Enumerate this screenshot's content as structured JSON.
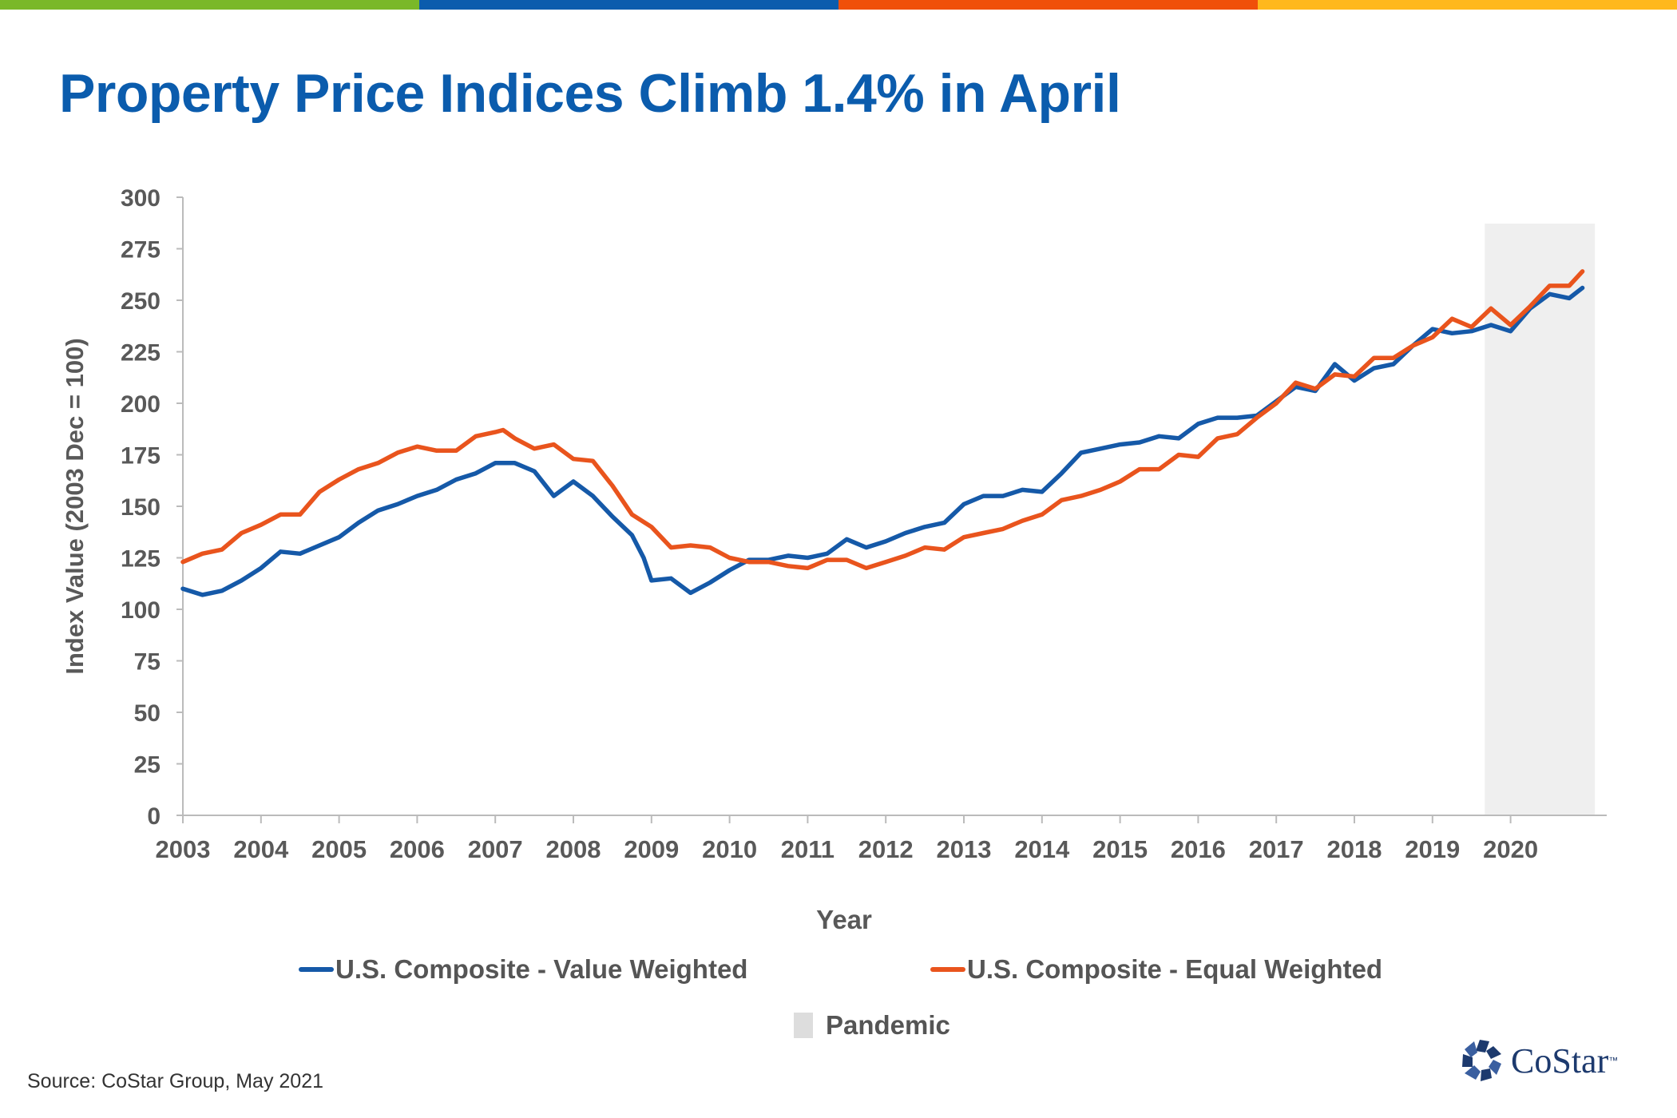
{
  "header": {
    "title": "Property Price Indices Climb 1.4% in April",
    "stripe_colors": [
      "#7ab829",
      "#0b5cad",
      "#f0500a",
      "#ffb81c"
    ]
  },
  "footer": {
    "source": "Source: CoStar Group, May 2021",
    "logo_text": "CoStar",
    "logo_tm": "™",
    "logo_icon": "costar-star-icon"
  },
  "chart_data": {
    "type": "line",
    "title": "",
    "xlabel": "Year",
    "ylabel": "Index Value (2003 Dec = 100)",
    "xlim": [
      2003,
      2021
    ],
    "ylim": [
      0,
      300
    ],
    "yticks": [
      0,
      25,
      50,
      75,
      100,
      125,
      150,
      175,
      200,
      225,
      250,
      275,
      300
    ],
    "xtick_labels": [
      "2003",
      "2004",
      "2005",
      "2006",
      "2007",
      "2008",
      "2009",
      "2010",
      "2011",
      "2012",
      "2013",
      "2014",
      "2015",
      "2016",
      "2017",
      "2018",
      "2019",
      "2020"
    ],
    "grid": false,
    "legend_position": "bottom",
    "shaded_region": {
      "name": "Pandemic",
      "start": 2019.67,
      "end": 2021.08,
      "color": "#efefef"
    },
    "series": [
      {
        "name": "U.S. Composite - Value Weighted",
        "color": "#1559a8",
        "points": [
          [
            2003.0,
            110
          ],
          [
            2003.25,
            107
          ],
          [
            2003.5,
            109
          ],
          [
            2003.75,
            114
          ],
          [
            2004.0,
            120
          ],
          [
            2004.25,
            128
          ],
          [
            2004.5,
            127
          ],
          [
            2004.75,
            131
          ],
          [
            2005.0,
            135
          ],
          [
            2005.25,
            142
          ],
          [
            2005.5,
            148
          ],
          [
            2005.75,
            151
          ],
          [
            2006.0,
            155
          ],
          [
            2006.25,
            158
          ],
          [
            2006.5,
            163
          ],
          [
            2006.75,
            166
          ],
          [
            2007.0,
            171
          ],
          [
            2007.25,
            171
          ],
          [
            2007.5,
            167
          ],
          [
            2007.75,
            155
          ],
          [
            2008.0,
            162
          ],
          [
            2008.25,
            155
          ],
          [
            2008.5,
            145
          ],
          [
            2008.75,
            136
          ],
          [
            2008.9,
            125
          ],
          [
            2009.0,
            114
          ],
          [
            2009.25,
            115
          ],
          [
            2009.5,
            108
          ],
          [
            2009.75,
            113
          ],
          [
            2010.0,
            119
          ],
          [
            2010.25,
            124
          ],
          [
            2010.5,
            124
          ],
          [
            2010.75,
            126
          ],
          [
            2011.0,
            125
          ],
          [
            2011.25,
            127
          ],
          [
            2011.5,
            134
          ],
          [
            2011.75,
            130
          ],
          [
            2012.0,
            133
          ],
          [
            2012.25,
            137
          ],
          [
            2012.5,
            140
          ],
          [
            2012.75,
            142
          ],
          [
            2013.0,
            151
          ],
          [
            2013.25,
            155
          ],
          [
            2013.5,
            155
          ],
          [
            2013.75,
            158
          ],
          [
            2014.0,
            157
          ],
          [
            2014.25,
            166
          ],
          [
            2014.5,
            176
          ],
          [
            2014.75,
            178
          ],
          [
            2015.0,
            180
          ],
          [
            2015.25,
            181
          ],
          [
            2015.5,
            184
          ],
          [
            2015.75,
            183
          ],
          [
            2016.0,
            190
          ],
          [
            2016.25,
            193
          ],
          [
            2016.5,
            193
          ],
          [
            2016.75,
            194
          ],
          [
            2017.0,
            201
          ],
          [
            2017.25,
            208
          ],
          [
            2017.5,
            206
          ],
          [
            2017.75,
            219
          ],
          [
            2018.0,
            211
          ],
          [
            2018.25,
            217
          ],
          [
            2018.5,
            219
          ],
          [
            2018.75,
            228
          ],
          [
            2019.0,
            236
          ],
          [
            2019.25,
            234
          ],
          [
            2019.5,
            235
          ],
          [
            2019.75,
            238
          ],
          [
            2020.0,
            235
          ],
          [
            2020.25,
            246
          ],
          [
            2020.5,
            253
          ],
          [
            2020.75,
            251
          ],
          [
            2020.92,
            256
          ]
        ]
      },
      {
        "name": "U.S. Composite - Equal Weighted",
        "color": "#e9541d",
        "points": [
          [
            2003.0,
            123
          ],
          [
            2003.25,
            127
          ],
          [
            2003.5,
            129
          ],
          [
            2003.75,
            137
          ],
          [
            2004.0,
            141
          ],
          [
            2004.25,
            146
          ],
          [
            2004.5,
            146
          ],
          [
            2004.75,
            157
          ],
          [
            2005.0,
            163
          ],
          [
            2005.25,
            168
          ],
          [
            2005.5,
            171
          ],
          [
            2005.75,
            176
          ],
          [
            2006.0,
            179
          ],
          [
            2006.25,
            177
          ],
          [
            2006.5,
            177
          ],
          [
            2006.75,
            184
          ],
          [
            2007.0,
            186
          ],
          [
            2007.1,
            187
          ],
          [
            2007.25,
            183
          ],
          [
            2007.5,
            178
          ],
          [
            2007.75,
            180
          ],
          [
            2008.0,
            173
          ],
          [
            2008.25,
            172
          ],
          [
            2008.5,
            160
          ],
          [
            2008.75,
            146
          ],
          [
            2009.0,
            140
          ],
          [
            2009.25,
            130
          ],
          [
            2009.5,
            131
          ],
          [
            2009.75,
            130
          ],
          [
            2010.0,
            125
          ],
          [
            2010.25,
            123
          ],
          [
            2010.5,
            123
          ],
          [
            2010.75,
            121
          ],
          [
            2011.0,
            120
          ],
          [
            2011.25,
            124
          ],
          [
            2011.5,
            124
          ],
          [
            2011.75,
            120
          ],
          [
            2012.0,
            123
          ],
          [
            2012.25,
            126
          ],
          [
            2012.5,
            130
          ],
          [
            2012.75,
            129
          ],
          [
            2013.0,
            135
          ],
          [
            2013.25,
            137
          ],
          [
            2013.5,
            139
          ],
          [
            2013.75,
            143
          ],
          [
            2014.0,
            146
          ],
          [
            2014.25,
            153
          ],
          [
            2014.5,
            155
          ],
          [
            2014.75,
            158
          ],
          [
            2015.0,
            162
          ],
          [
            2015.25,
            168
          ],
          [
            2015.5,
            168
          ],
          [
            2015.75,
            175
          ],
          [
            2016.0,
            174
          ],
          [
            2016.25,
            183
          ],
          [
            2016.5,
            185
          ],
          [
            2016.75,
            193
          ],
          [
            2017.0,
            200
          ],
          [
            2017.25,
            210
          ],
          [
            2017.5,
            207
          ],
          [
            2017.75,
            214
          ],
          [
            2018.0,
            213
          ],
          [
            2018.25,
            222
          ],
          [
            2018.5,
            222
          ],
          [
            2018.75,
            228
          ],
          [
            2019.0,
            232
          ],
          [
            2019.25,
            241
          ],
          [
            2019.5,
            237
          ],
          [
            2019.75,
            246
          ],
          [
            2020.0,
            238
          ],
          [
            2020.25,
            247
          ],
          [
            2020.5,
            257
          ],
          [
            2020.75,
            257
          ],
          [
            2020.92,
            264
          ]
        ]
      }
    ]
  }
}
